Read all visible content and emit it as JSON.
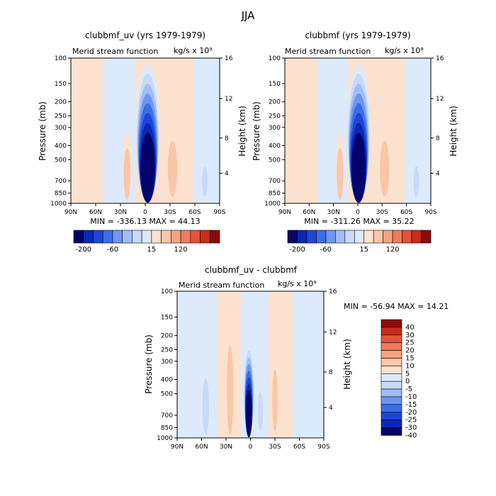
{
  "figure_title": "JJA",
  "colors": {
    "dark_blue": "#03036b",
    "blue_1": "#0a28b4",
    "blue_2": "#1e46d7",
    "blue_3": "#3c6ee6",
    "blue_4": "#6e96f0",
    "blue_5": "#a0bef5",
    "blue_6": "#c6daf9",
    "neutral_blue": "#dceafb",
    "neutral_warm": "#fde2cf",
    "orange_1": "#fbc6a8",
    "orange_2": "#f6a283",
    "orange_3": "#ef7c5c",
    "orange_4": "#e65238",
    "orange_5": "#cc2a1c",
    "dark_red": "#8c0a0a"
  },
  "chart_data": [
    {
      "type": "heatmap",
      "title": "clubbmf_uv (yrs 1979-1979)",
      "subtitle": "Merid stream function",
      "units": "kg/s x 10⁹",
      "xlabel": "",
      "ylabel": "Pressure (mb)",
      "right_label": "Height (km)",
      "x_ticks": [
        "90N",
        "60N",
        "30N",
        "0",
        "30S",
        "60S",
        "90S"
      ],
      "x_range_lat": [
        90,
        -90
      ],
      "y_ticks": [
        "100",
        "150",
        "200",
        "250",
        "300",
        "400",
        "500",
        "700",
        "850",
        "1000"
      ],
      "y_range_mb": [
        100,
        1000
      ],
      "y_scale": "log",
      "height_ticks": [
        "16",
        "12",
        "8",
        "4"
      ],
      "stats_text": "MIN = -336.13   MAX =  44.13",
      "min": -336.13,
      "max": 44.13,
      "colorbar_labels": [
        "-200",
        "-60",
        "15",
        "120"
      ],
      "features": [
        {
          "lat": -3,
          "p_top": 110,
          "p_bottom": 990,
          "width_deg": 28,
          "value": -336
        },
        {
          "lat": 22,
          "p_top": 320,
          "p_bottom": 950,
          "width_deg": 10,
          "value": 18
        },
        {
          "lat": -33,
          "p_top": 280,
          "p_bottom": 900,
          "width_deg": 14,
          "value": 44
        },
        {
          "lat": -72,
          "p_top": 480,
          "p_bottom": 900,
          "width_deg": 8,
          "value": -20
        }
      ]
    },
    {
      "type": "heatmap",
      "title": "clubbmf (yrs 1979-1979)",
      "subtitle": "Merid stream function",
      "units": "kg/s x 10⁹",
      "xlabel": "",
      "ylabel": "Pressure (mb)",
      "right_label": "Height (km)",
      "x_ticks": [
        "90N",
        "60N",
        "30N",
        "0",
        "30S",
        "60S",
        "90S"
      ],
      "x_range_lat": [
        90,
        -90
      ],
      "y_ticks": [
        "100",
        "150",
        "200",
        "250",
        "300",
        "400",
        "500",
        "700",
        "850",
        "1000"
      ],
      "y_range_mb": [
        100,
        1000
      ],
      "y_scale": "log",
      "height_ticks": [
        "16",
        "12",
        "8",
        "4"
      ],
      "stats_text": "MIN = -311.26   MAX =  35.22",
      "min": -311.26,
      "max": 35.22,
      "colorbar_labels": [
        "-200",
        "-60",
        "15",
        "120"
      ],
      "features": [
        {
          "lat": -1,
          "p_top": 110,
          "p_bottom": 990,
          "width_deg": 28,
          "value": -311
        },
        {
          "lat": 22,
          "p_top": 320,
          "p_bottom": 950,
          "width_deg": 10,
          "value": 15
        },
        {
          "lat": -33,
          "p_top": 280,
          "p_bottom": 900,
          "width_deg": 14,
          "value": 35
        },
        {
          "lat": -72,
          "p_top": 480,
          "p_bottom": 900,
          "width_deg": 8,
          "value": -15
        }
      ]
    },
    {
      "type": "heatmap",
      "title": "clubbmf_uv - clubbmf",
      "subtitle": "Merid stream function",
      "units": "kg/s x 10⁹",
      "xlabel": "",
      "ylabel": "Pressure (mb)",
      "right_label": "Height (km)",
      "x_ticks": [
        "90N",
        "60N",
        "30N",
        "0",
        "30S",
        "60S",
        "90S"
      ],
      "x_range_lat": [
        90,
        -90
      ],
      "y_ticks": [
        "100",
        "150",
        "200",
        "250",
        "300",
        "400",
        "500",
        "700",
        "850",
        "1000"
      ],
      "y_range_mb": [
        100,
        1000
      ],
      "y_scale": "log",
      "height_ticks": [
        "16",
        "12",
        "8",
        "4"
      ],
      "stats_text": "MIN = -56.94   MAX =  14.21",
      "min": -56.94,
      "max": 14.21,
      "colorbar_labels": [
        "40",
        "30",
        "25",
        "20",
        "15",
        "10",
        "5",
        "0",
        "-5",
        "-10",
        "-15",
        "-20",
        "-25",
        "-30",
        "-40"
      ],
      "features": [
        {
          "lat": 2,
          "p_top": 230,
          "p_bottom": 990,
          "width_deg": 12,
          "value": -57
        },
        {
          "lat": 25,
          "p_top": 150,
          "p_bottom": 950,
          "width_deg": 10,
          "value": 8
        },
        {
          "lat": -30,
          "p_top": 250,
          "p_bottom": 900,
          "width_deg": 8,
          "value": 14
        },
        {
          "lat": -12,
          "p_top": 400,
          "p_bottom": 900,
          "width_deg": 8,
          "value": -12
        },
        {
          "lat": 55,
          "p_top": 300,
          "p_bottom": 950,
          "width_deg": 10,
          "value": -5
        }
      ]
    }
  ]
}
